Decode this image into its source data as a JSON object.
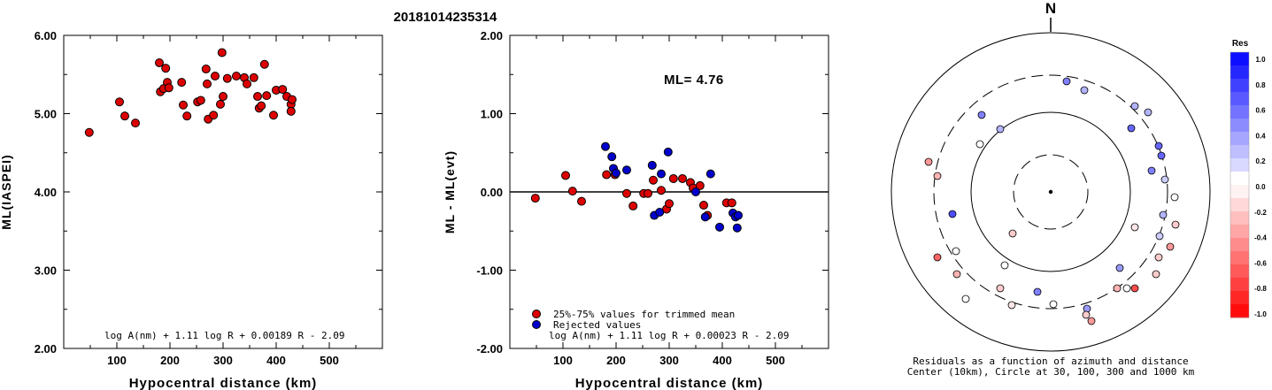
{
  "title": "20181014235314",
  "chart_data": [
    {
      "type": "scatter",
      "xlabel": "Hypocentral distance (km)",
      "ylabel": "ML(IASPEI)",
      "xlim": [
        0,
        600
      ],
      "ylim": [
        2.0,
        6.0
      ],
      "xticks": [
        "100",
        "200",
        "300",
        "400",
        "500"
      ],
      "yticks": [
        "2.00",
        "3.00",
        "4.00",
        "5.00",
        "6.00"
      ],
      "formula": "log A(nm) + 1.11 log R + 0.00189 R - 2.09",
      "series": [
        {
          "color": "#dd0000",
          "points": [
            [
              48,
              4.76
            ],
            [
              105,
              5.15
            ],
            [
              115,
              4.97
            ],
            [
              135,
              4.88
            ],
            [
              180,
              5.65
            ],
            [
              182,
              5.28
            ],
            [
              188,
              5.32
            ],
            [
              192,
              5.58
            ],
            [
              195,
              5.4
            ],
            [
              198,
              5.33
            ],
            [
              222,
              5.4
            ],
            [
              225,
              5.11
            ],
            [
              232,
              4.97
            ],
            [
              252,
              5.15
            ],
            [
              258,
              5.17
            ],
            [
              268,
              5.57
            ],
            [
              270,
              5.38
            ],
            [
              272,
              4.93
            ],
            [
              282,
              4.98
            ],
            [
              285,
              5.48
            ],
            [
              295,
              5.12
            ],
            [
              298,
              5.78
            ],
            [
              300,
              5.22
            ],
            [
              308,
              5.45
            ],
            [
              325,
              5.48
            ],
            [
              340,
              5.46
            ],
            [
              345,
              5.38
            ],
            [
              358,
              5.46
            ],
            [
              365,
              5.22
            ],
            [
              368,
              5.07
            ],
            [
              372,
              5.1
            ],
            [
              378,
              5.63
            ],
            [
              382,
              5.23
            ],
            [
              395,
              4.98
            ],
            [
              400,
              5.3
            ],
            [
              412,
              5.31
            ],
            [
              420,
              5.22
            ],
            [
              428,
              5.12
            ],
            [
              428,
              5.03
            ],
            [
              430,
              5.18
            ]
          ]
        }
      ]
    },
    {
      "type": "scatter",
      "xlabel": "Hypocentral distance (km)",
      "ylabel": "ML - ML(evt)",
      "xlim": [
        0,
        600
      ],
      "ylim": [
        -2.0,
        2.0
      ],
      "xticks": [
        "100",
        "200",
        "300",
        "400",
        "500"
      ],
      "yticks": [
        "-2.00",
        "-1.00",
        "0.00",
        "1.00",
        "2.00"
      ],
      "annotation": "ML= 4.76",
      "formula": "log A(nm) + 1.11 log R + 0.00023 R - 2.09",
      "legend": [
        "25%-75% values for trimmed mean",
        "Rejected values"
      ],
      "series": [
        {
          "name": "25%-75% values for trimmed mean",
          "color": "#dd0000",
          "points": [
            [
              48,
              -0.08
            ],
            [
              105,
              0.21
            ],
            [
              118,
              0.01
            ],
            [
              135,
              -0.12
            ],
            [
              182,
              0.22
            ],
            [
              198,
              0.22
            ],
            [
              220,
              -0.02
            ],
            [
              232,
              -0.18
            ],
            [
              252,
              -0.02
            ],
            [
              260,
              -0.02
            ],
            [
              270,
              0.15
            ],
            [
              285,
              0.02
            ],
            [
              295,
              -0.22
            ],
            [
              300,
              -0.15
            ],
            [
              308,
              0.17
            ],
            [
              325,
              0.17
            ],
            [
              340,
              0.12
            ],
            [
              345,
              0.05
            ],
            [
              358,
              0.08
            ],
            [
              365,
              -0.17
            ],
            [
              372,
              -0.3
            ],
            [
              408,
              -0.14
            ],
            [
              418,
              -0.14
            ]
          ]
        },
        {
          "name": "Rejected values",
          "color": "#0000cc",
          "points": [
            [
              180,
              0.58
            ],
            [
              192,
              0.45
            ],
            [
              195,
              0.3
            ],
            [
              200,
              0.24
            ],
            [
              220,
              0.28
            ],
            [
              268,
              0.34
            ],
            [
              272,
              -0.3
            ],
            [
              282,
              -0.26
            ],
            [
              285,
              0.23
            ],
            [
              298,
              0.51
            ],
            [
              350,
              0.0
            ],
            [
              368,
              -0.32
            ],
            [
              378,
              0.23
            ],
            [
              395,
              -0.45
            ],
            [
              420,
              -0.27
            ],
            [
              425,
              -0.32
            ],
            [
              428,
              -0.46
            ],
            [
              430,
              -0.3
            ]
          ]
        }
      ]
    }
  ],
  "polar": {
    "north_label": "N",
    "caption_line1": "Residuals as a function of azimuth and distance",
    "caption_line2": "Center (10km), Circle at 30, 100, 300 and 1000 km",
    "stations": [
      [
        1205,
        92,
        0.5
      ],
      [
        1225,
        102,
        0.3
      ],
      [
        1109,
        130,
        0.5
      ],
      [
        1130,
        146,
        0.3
      ],
      [
        1282,
        120,
        0.3
      ],
      [
        1297,
        127,
        0.3
      ],
      [
        1278,
        145,
        0.6
      ],
      [
        1309,
        165,
        0.6
      ],
      [
        1312,
        176,
        0.6
      ],
      [
        1107,
        163,
        0.0
      ],
      [
        1049,
        183,
        -0.4
      ],
      [
        1301,
        193,
        0.5
      ],
      [
        1059,
        199,
        -0.3
      ],
      [
        1316,
        203,
        0.2
      ],
      [
        1327,
        223,
        0.0
      ],
      [
        1076,
        242,
        0.7
      ],
      [
        1314,
        243,
        0.3
      ],
      [
        1328,
        254,
        -0.2
      ],
      [
        1282,
        257,
        -0.1
      ],
      [
        1144,
        264,
        -0.2
      ],
      [
        1310,
        267,
        0.2
      ],
      [
        1322,
        279,
        -0.4
      ],
      [
        1080,
        284,
        0.0
      ],
      [
        1059,
        291,
        -0.6
      ],
      [
        1309,
        291,
        -0.2
      ],
      [
        1135,
        300,
        0.0
      ],
      [
        1265,
        303,
        0.4
      ],
      [
        1081,
        310,
        -0.3
      ],
      [
        1306,
        310,
        -0.2
      ],
      [
        1262,
        326,
        -0.3
      ],
      [
        1273,
        326,
        0.0
      ],
      [
        1282,
        326,
        -0.7
      ],
      [
        1130,
        326,
        -0.2
      ],
      [
        1172,
        330,
        0.5
      ],
      [
        1091,
        338,
        0.0
      ],
      [
        1143,
        345,
        -0.1
      ],
      [
        1190,
        344,
        0.0
      ],
      [
        1228,
        349,
        0.4
      ],
      [
        1227,
        356,
        -0.2
      ],
      [
        1233,
        363,
        -0.4
      ]
    ]
  },
  "colorbar": {
    "title": "Res",
    "labels": [
      "1.0",
      "0.8",
      "0.6",
      "0.4",
      "0.2",
      "0.0",
      "-0.2",
      "-0.4",
      "-0.6",
      "-0.8",
      "-1.0"
    ]
  }
}
